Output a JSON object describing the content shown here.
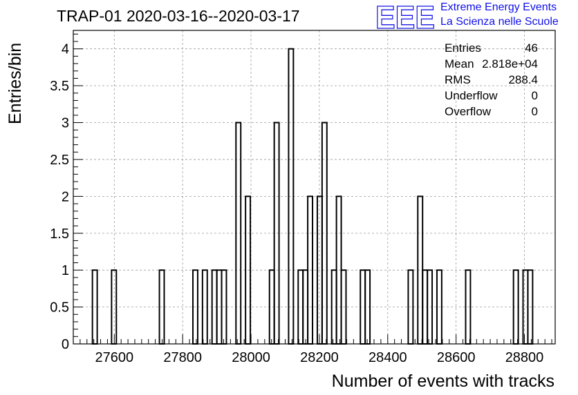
{
  "title": "TRAP-01 2020-03-16--2020-03-17",
  "logo": {
    "mark": "EEE",
    "line1": "Extreme Energy Events",
    "line2": "La Scienza nelle Scuole",
    "color": "#1010e8"
  },
  "stats_box": {
    "rows": [
      {
        "label": "Entries",
        "value": "46"
      },
      {
        "label": "Mean",
        "value": "2.818e+04"
      },
      {
        "label": "RMS",
        "value": "288.4"
      },
      {
        "label": "Underflow",
        "value": "0"
      },
      {
        "label": "Overflow",
        "value": "0"
      }
    ]
  },
  "chart_data": {
    "type": "bar",
    "histogram": true,
    "title": "TRAP-01 2020-03-16--2020-03-17",
    "xlabel": "Number of events with tracks",
    "ylabel": "Entries/bin",
    "xlim": [
      27480,
      28890
    ],
    "ylim": [
      0,
      4.25
    ],
    "bin_width": 14,
    "xticks": [
      "27600",
      "27800",
      "28000",
      "28200",
      "28400",
      "28600",
      "28800"
    ],
    "xtick_values": [
      27600,
      27800,
      28000,
      28200,
      28400,
      28600,
      28800
    ],
    "yticks": [
      "0",
      "0.5",
      "1",
      "1.5",
      "2",
      "2.5",
      "3",
      "3.5",
      "4"
    ],
    "ytick_values": [
      0,
      0.5,
      1,
      1.5,
      2,
      2.5,
      3,
      3.5,
      4
    ],
    "grid": true,
    "grid_style": "dashed",
    "line_color": "#000000",
    "bins": [
      {
        "x0": 27536,
        "x1": 27550,
        "count": 1
      },
      {
        "x0": 27592,
        "x1": 27606,
        "count": 1
      },
      {
        "x0": 27732,
        "x1": 27746,
        "count": 1
      },
      {
        "x0": 27830,
        "x1": 27844,
        "count": 1
      },
      {
        "x0": 27858,
        "x1": 27872,
        "count": 1
      },
      {
        "x0": 27886,
        "x1": 27900,
        "count": 1
      },
      {
        "x0": 27900,
        "x1": 27914,
        "count": 1
      },
      {
        "x0": 27914,
        "x1": 27928,
        "count": 1
      },
      {
        "x0": 27956,
        "x1": 27970,
        "count": 3
      },
      {
        "x0": 27984,
        "x1": 27998,
        "count": 2
      },
      {
        "x0": 28054,
        "x1": 28068,
        "count": 1
      },
      {
        "x0": 28068,
        "x1": 28082,
        "count": 3
      },
      {
        "x0": 28110,
        "x1": 28124,
        "count": 4
      },
      {
        "x0": 28138,
        "x1": 28152,
        "count": 1
      },
      {
        "x0": 28152,
        "x1": 28166,
        "count": 1
      },
      {
        "x0": 28166,
        "x1": 28180,
        "count": 2
      },
      {
        "x0": 28194,
        "x1": 28208,
        "count": 2
      },
      {
        "x0": 28208,
        "x1": 28222,
        "count": 3
      },
      {
        "x0": 28236,
        "x1": 28250,
        "count": 1
      },
      {
        "x0": 28250,
        "x1": 28264,
        "count": 2
      },
      {
        "x0": 28264,
        "x1": 28278,
        "count": 1
      },
      {
        "x0": 28320,
        "x1": 28334,
        "count": 1
      },
      {
        "x0": 28334,
        "x1": 28348,
        "count": 1
      },
      {
        "x0": 28460,
        "x1": 28474,
        "count": 1
      },
      {
        "x0": 28488,
        "x1": 28502,
        "count": 2
      },
      {
        "x0": 28502,
        "x1": 28516,
        "count": 1
      },
      {
        "x0": 28516,
        "x1": 28530,
        "count": 1
      },
      {
        "x0": 28544,
        "x1": 28558,
        "count": 1
      },
      {
        "x0": 28628,
        "x1": 28642,
        "count": 1
      },
      {
        "x0": 28768,
        "x1": 28782,
        "count": 1
      },
      {
        "x0": 28796,
        "x1": 28810,
        "count": 1
      },
      {
        "x0": 28810,
        "x1": 28824,
        "count": 1
      }
    ]
  }
}
